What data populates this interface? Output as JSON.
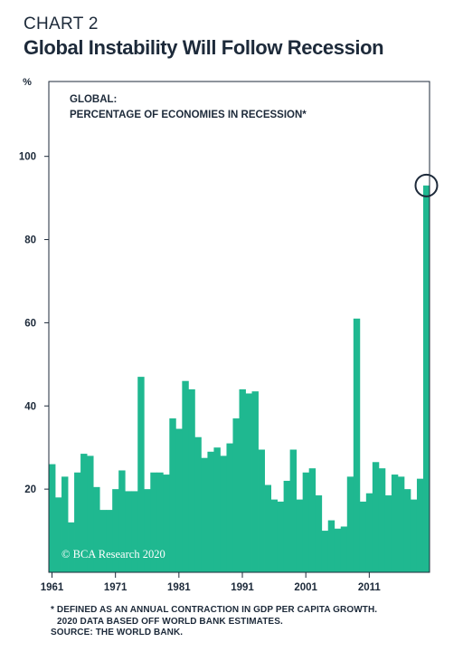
{
  "header": {
    "chart_label": "CHART 2",
    "title": "Global Instability Will Follow Recession"
  },
  "footnotes": {
    "line1": "* DEFINED AS AN ANNUAL CONTRACTION IN GDP PER CAPITA GROWTH.",
    "line2": "2020 DATA BASED OFF WORLD BANK ESTIMATES.",
    "line3": "SOURCE: THE WORLD BANK."
  },
  "watermark": "© BCA Research 2020",
  "colors": {
    "bars": "#1fb890",
    "axis": "#1d2a3a",
    "highlight_circle": "#1d2a3a"
  },
  "chart_data": {
    "type": "bar",
    "title": "GLOBAL:",
    "subtitle": "PERCENTAGE OF ECONOMIES IN RECESSION*",
    "ylabel": "%",
    "ylim": [
      0,
      118
    ],
    "yticks": [
      20,
      40,
      60,
      80,
      100
    ],
    "xtick_labels": [
      "1961",
      "1971",
      "1981",
      "1991",
      "2001",
      "2011"
    ],
    "grid": false,
    "legend": "none",
    "categories": [
      1961,
      1962,
      1963,
      1964,
      1965,
      1966,
      1967,
      1968,
      1969,
      1970,
      1971,
      1972,
      1973,
      1974,
      1975,
      1976,
      1977,
      1978,
      1979,
      1980,
      1981,
      1982,
      1983,
      1984,
      1985,
      1986,
      1987,
      1988,
      1989,
      1990,
      1991,
      1992,
      1993,
      1994,
      1995,
      1996,
      1997,
      1998,
      1999,
      2000,
      2001,
      2002,
      2003,
      2004,
      2005,
      2006,
      2007,
      2008,
      2009,
      2010,
      2011,
      2012,
      2013,
      2014,
      2015,
      2016,
      2017,
      2018,
      2019,
      2020
    ],
    "values": [
      26,
      18,
      23,
      12,
      24,
      28.5,
      28,
      20.5,
      15,
      15,
      20,
      24.5,
      19.5,
      19.5,
      47,
      20,
      24,
      24,
      23.5,
      37,
      34.5,
      46,
      44,
      32.5,
      27.5,
      29,
      30,
      28,
      31,
      37,
      44,
      43,
      43.5,
      29.5,
      21,
      17.5,
      17,
      22,
      29.5,
      17.5,
      24,
      25,
      18.5,
      10,
      12.5,
      10.5,
      11,
      23,
      61,
      17,
      19,
      26.5,
      25,
      18.5,
      23.5,
      23,
      20,
      17.5,
      22.5,
      93
    ],
    "highlight": {
      "category": 2020,
      "shape": "circle"
    }
  }
}
